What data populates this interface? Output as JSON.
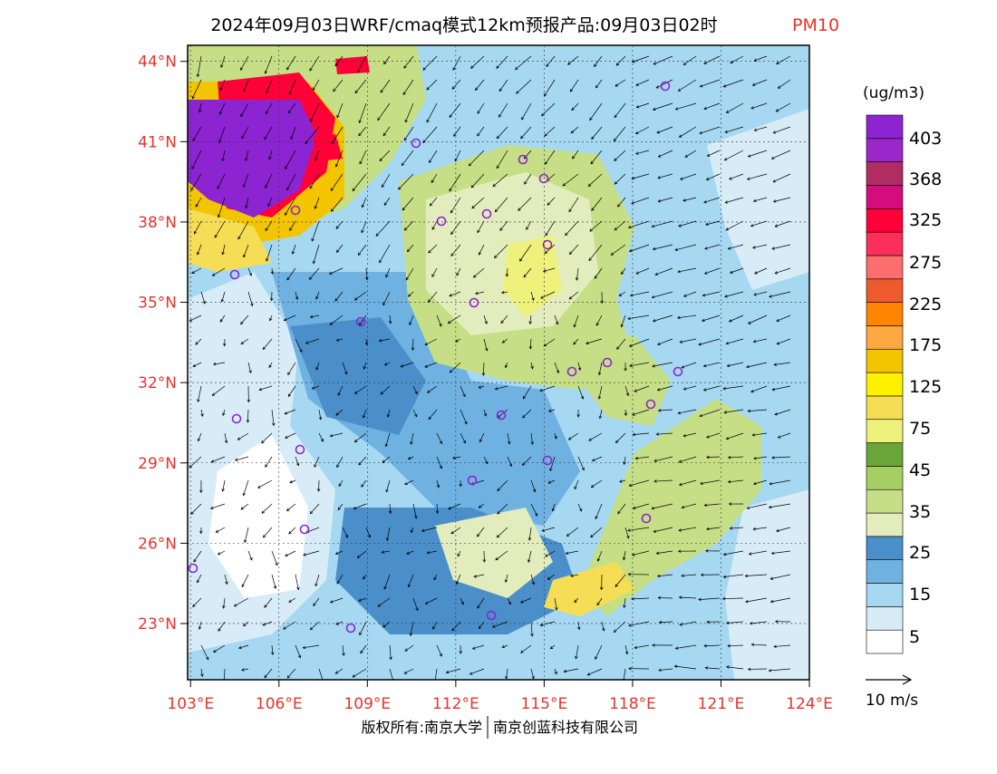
{
  "title": {
    "main": "2024年09月03日WRF/cmaq模式12km预报产品:09月03日02时",
    "species": "PM10",
    "species_color": "#e8332d"
  },
  "map": {
    "lat_labels": [
      "44°N",
      "41°N",
      "38°N",
      "35°N",
      "32°N",
      "29°N",
      "26°N",
      "23°N"
    ],
    "lat_values": [
      44,
      41,
      38,
      35,
      32,
      29,
      26,
      23
    ],
    "lon_labels": [
      "103°E",
      "106°E",
      "109°E",
      "112°E",
      "115°E",
      "118°E",
      "121°E",
      "124°E"
    ],
    "lon_values": [
      103,
      106,
      109,
      112,
      115,
      118,
      121,
      124
    ],
    "label_color": "#e8332d",
    "lat_range": [
      20.9,
      44.6
    ],
    "lon_range": [
      102.9,
      124
    ]
  },
  "legend": {
    "unit": "(ug/m3)",
    "labels": [
      "403",
      "368",
      "325",
      "275",
      "225",
      "175",
      "125",
      "75",
      "45",
      "35",
      "25",
      "15",
      "5"
    ],
    "colors": [
      "#ffffff",
      "#d8ecf8",
      "#a6d8f2",
      "#6fb2e2",
      "#4b8fca",
      "#e2ecbd",
      "#c6df87",
      "#a6cf63",
      "#6aa63a",
      "#eef27c",
      "#f5de55",
      "#fff100",
      "#f2c500",
      "#fca840",
      "#ff8400",
      "#ec5a2e",
      "#fc6d6d",
      "#fc2e5a",
      "#ff0039",
      "#d30d7c",
      "#b02c63",
      "#9a28c8",
      "#8c24d2"
    ]
  },
  "wind_reference": {
    "label": "10 m/s"
  },
  "footer": {
    "copyright": "版权所有:南京大学",
    "company": "南京创蓝科技有限公司"
  }
}
